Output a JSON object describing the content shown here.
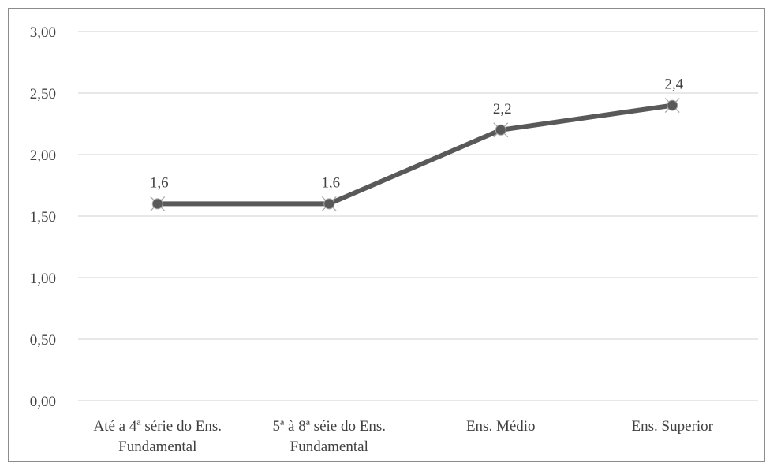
{
  "chart_data": {
    "type": "line",
    "title": "",
    "xlabel": "",
    "ylabel": "",
    "categories": [
      [
        "Até a  4ª série do Ens.",
        "Fundamental"
      ],
      [
        "5ª à 8ª séie do Ens.",
        "Fundamental"
      ],
      [
        "Ens. Médio"
      ],
      [
        "Ens. Superior"
      ]
    ],
    "series": [
      {
        "values": [
          1.6,
          1.6,
          2.2,
          2.4
        ],
        "data_labels": [
          "1,6",
          "1,6",
          "2,2",
          "2,4"
        ]
      }
    ],
    "ylim": [
      0,
      3
    ],
    "y_ticks": [
      0,
      0.5,
      1,
      1.5,
      2,
      2.5,
      3
    ],
    "y_tick_labels": [
      "0,00",
      "0,50",
      "1,00",
      "1,50",
      "2,00",
      "2,50",
      "3,00"
    ],
    "grid": true,
    "legend": "none",
    "colors": {
      "line": "#595959",
      "marker": "#595959",
      "marker_edge": "#a6a6a6",
      "grid": "#d9d9d9",
      "text": "#404040"
    }
  }
}
